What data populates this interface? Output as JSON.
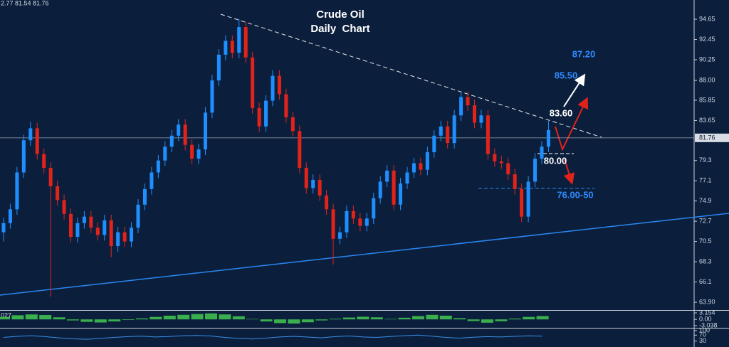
{
  "chart_data": [
    {
      "type": "candlestick",
      "title": "Crude Oil",
      "subtitle": "Daily  Chart",
      "header": "2.77 81.54 81.76",
      "open": [
        71.5,
        72.5,
        74.0,
        78.0,
        81.5,
        82.8,
        80.0,
        78.5,
        76.5,
        75.0,
        73.5,
        71.0,
        72.5,
        73.2,
        72.0,
        71.2,
        72.8,
        70.0,
        71.5,
        70.5,
        72.0,
        74.5,
        76.2,
        78.0,
        79.3,
        80.8,
        82.0,
        83.2,
        81.0,
        79.5,
        80.5,
        84.5,
        88.0,
        90.8,
        92.3,
        91.0,
        93.8,
        90.5,
        85.0,
        83.0,
        85.8,
        88.5,
        86.5,
        84.0,
        82.5,
        78.5,
        76.3,
        77.2,
        75.5,
        74.0,
        70.8,
        71.5,
        73.8,
        73.0,
        72.2,
        73.0,
        75.2,
        77.0,
        78.2,
        74.5,
        76.8,
        78.0,
        79.0,
        78.3,
        80.2,
        82.0,
        83.0,
        81.2,
        84.2,
        86.2,
        85.3,
        83.4,
        84.2,
        80.0,
        79.2,
        79.0,
        77.8,
        76.2,
        73.2,
        77.0,
        79.5,
        80.8
      ],
      "high": [
        73.1,
        74.6,
        78.6,
        82.1,
        83.5,
        83.4,
        80.6,
        79.1,
        77.1,
        75.6,
        74.1,
        73.1,
        73.8,
        73.8,
        72.6,
        73.4,
        73.4,
        72.1,
        72.1,
        72.6,
        75.1,
        76.8,
        78.6,
        79.9,
        81.4,
        82.6,
        83.8,
        83.8,
        81.6,
        81.1,
        85.1,
        88.6,
        91.4,
        92.9,
        92.9,
        94.7,
        94.4,
        91.1,
        85.6,
        86.4,
        89.1,
        89.1,
        87.1,
        84.6,
        83.1,
        79.1,
        77.8,
        77.8,
        76.1,
        74.6,
        72.1,
        74.4,
        74.4,
        73.6,
        73.6,
        75.8,
        77.6,
        78.8,
        78.8,
        77.4,
        78.6,
        79.6,
        79.6,
        80.8,
        82.6,
        83.6,
        83.6,
        84.8,
        86.8,
        86.8,
        85.9,
        84.8,
        84.8,
        80.6,
        79.8,
        79.6,
        78.4,
        76.8,
        77.6,
        80.1,
        81.4,
        83.6
      ],
      "low": [
        70.5,
        71.9,
        73.4,
        77.4,
        80.9,
        79.4,
        77.9,
        64.5,
        74.4,
        72.9,
        70.4,
        70.4,
        71.9,
        71.4,
        70.6,
        70.6,
        68.8,
        69.4,
        69.9,
        69.9,
        71.4,
        73.9,
        75.6,
        77.4,
        78.7,
        80.2,
        81.4,
        80.4,
        78.9,
        78.9,
        79.9,
        83.9,
        87.4,
        90.2,
        90.4,
        90.4,
        89.9,
        84.4,
        82.4,
        82.4,
        85.2,
        85.9,
        83.4,
        81.9,
        77.9,
        75.7,
        75.7,
        74.9,
        73.4,
        68.0,
        70.2,
        70.9,
        72.4,
        71.6,
        71.6,
        72.4,
        74.6,
        76.4,
        73.9,
        73.9,
        76.2,
        77.4,
        77.7,
        77.7,
        79.6,
        81.4,
        80.6,
        80.6,
        83.6,
        84.7,
        82.8,
        82.8,
        79.4,
        78.6,
        78.4,
        77.2,
        75.6,
        72.6,
        72.6,
        76.4,
        78.9,
        80.2
      ],
      "close": [
        72.5,
        74.0,
        78.0,
        81.5,
        82.8,
        80.0,
        78.5,
        76.5,
        75.0,
        73.5,
        71.0,
        72.5,
        73.2,
        72.0,
        71.2,
        72.8,
        70.0,
        71.5,
        70.5,
        72.0,
        74.5,
        76.2,
        78.0,
        79.3,
        80.8,
        82.0,
        83.2,
        81.0,
        79.5,
        80.5,
        84.5,
        88.0,
        90.8,
        92.3,
        91.0,
        93.8,
        90.5,
        85.0,
        83.0,
        85.8,
        88.5,
        86.5,
        84.0,
        82.5,
        78.5,
        76.3,
        77.2,
        75.5,
        74.0,
        70.8,
        71.5,
        73.8,
        73.0,
        72.2,
        73.0,
        75.2,
        77.0,
        78.2,
        74.5,
        76.8,
        78.0,
        79.0,
        78.3,
        80.2,
        82.0,
        83.0,
        81.2,
        84.2,
        86.2,
        85.3,
        83.4,
        84.2,
        80.0,
        79.2,
        79.0,
        77.8,
        76.2,
        73.2,
        77.0,
        79.5,
        80.8,
        82.6
      ],
      "up_color": "#1f8fff",
      "down_color": "#e2231a",
      "ylim": [
        63.13,
        96.74
      ],
      "yticks": [
        94.65,
        92.45,
        90.25,
        {
          "value": 88,
          "label": "88.00"
        },
        85.85,
        83.65,
        79.3,
        77.1,
        74.9,
        72.7,
        70.5,
        68.3,
        66.1,
        {
          "value": 63.9,
          "label": "63.90"
        }
      ],
      "last_price": 81.76,
      "annotations": [
        {
          "text": "87.20",
          "color": "#2e8bff"
        },
        {
          "text": "85.50",
          "color": "#2e8bff"
        },
        {
          "text": "83.60",
          "color": "#ffffff"
        },
        {
          "text": "80.00",
          "color": "#ffffff"
        },
        {
          "text": "76.00-50",
          "color": "#2e8bff"
        }
      ]
    },
    {
      "type": "bar",
      "label": "027",
      "color": "#3fbf4f",
      "values": [
        1.2,
        2.0,
        2.4,
        2.1,
        1.0,
        -0.5,
        -1.2,
        -1.5,
        -1.0,
        -0.3,
        0.5,
        1.2,
        1.8,
        2.2,
        2.6,
        2.9,
        2.4,
        1.5,
        0.2,
        -1.0,
        -1.8,
        -2.0,
        -1.4,
        -0.5,
        0.3,
        0.9,
        1.3,
        1.0,
        0.2,
        0.8,
        1.6,
        2.2,
        1.8,
        0.6,
        -0.8,
        -1.6,
        -0.9,
        0.4,
        1.2,
        1.6
      ],
      "ylim": [
        -3.038,
        3.154
      ],
      "yticks": [
        3.154,
        {
          "value": 0,
          "label": "0.00"
        },
        -3.038
      ]
    },
    {
      "type": "line",
      "color": "#3a8ee6",
      "values": [
        55,
        62,
        66,
        60,
        52,
        45,
        42,
        48,
        55,
        60,
        63,
        58,
        61,
        66,
        68,
        64,
        55,
        48,
        44,
        50,
        58,
        62,
        57,
        52,
        60,
        64,
        58,
        55,
        61,
        66,
        70,
        63,
        55,
        50,
        56,
        60,
        58,
        62,
        65,
        63
      ],
      "ylim": [
        0,
        100
      ],
      "yticks": [
        100,
        70,
        30
      ]
    }
  ]
}
